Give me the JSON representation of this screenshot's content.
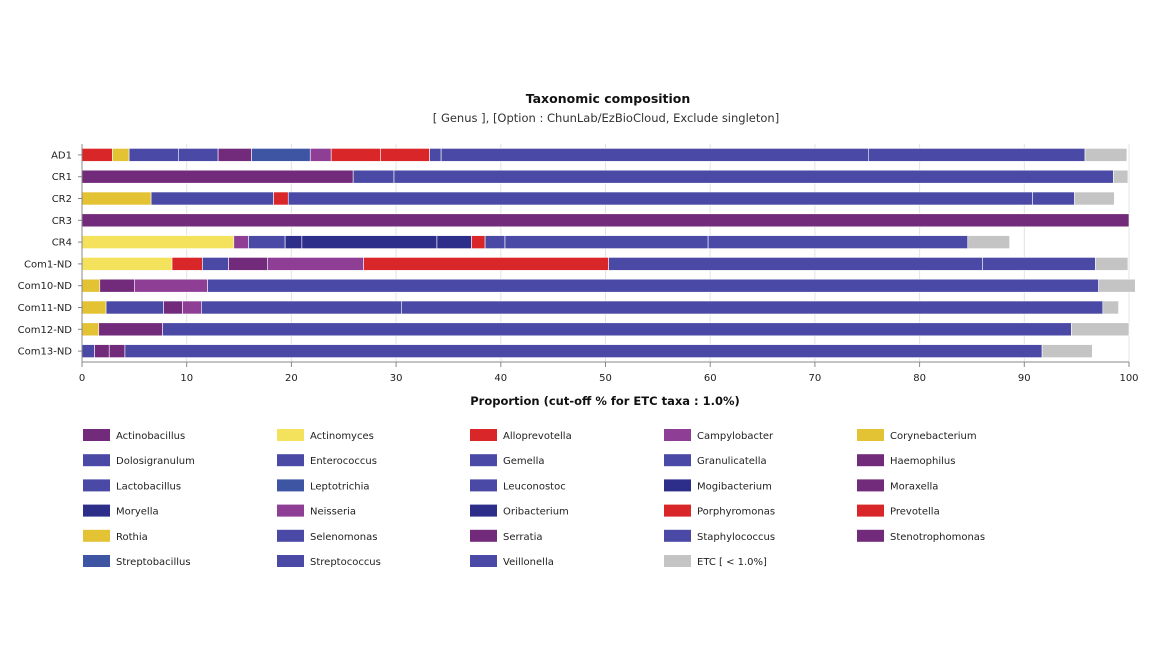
{
  "chart_data": {
    "type": "bar",
    "orientation": "horizontal",
    "stacked": true,
    "title": "Taxonomic composition",
    "subtitle": "[ Genus ], [Option : ChunLab/EzBioCloud, Exclude singleton]",
    "xlabel": "Proportion (cut-off % for ETC taxa : 1.0%)",
    "ylabel": "",
    "xlim": [
      0,
      100
    ],
    "xticks": [
      0,
      10,
      20,
      30,
      40,
      50,
      60,
      70,
      80,
      90,
      100
    ],
    "grid": true,
    "legend_position": "bottom",
    "categories": [
      "AD1",
      "CR1",
      "CR2",
      "CR3",
      "CR4",
      "Com1-ND",
      "Com10-ND",
      "Com11-ND",
      "Com12-ND",
      "Com13-ND"
    ],
    "series": [
      {
        "name": "Actinobacillus",
        "color": "#722a7b",
        "values": [
          0,
          0,
          0,
          0,
          0,
          0,
          0,
          0,
          0,
          0
        ]
      },
      {
        "name": "Actinomyces",
        "color": "#f5e25c",
        "values": [
          0,
          0,
          0,
          0,
          14.5,
          8.6,
          0,
          0,
          0,
          0
        ]
      },
      {
        "name": "Alloprevotella",
        "color": "#d92628",
        "values": [
          2.9,
          0,
          0,
          0,
          0,
          2.9,
          0,
          0,
          0,
          0
        ]
      },
      {
        "name": "Campylobacter",
        "color": "#8e3e95",
        "values": [
          0,
          0,
          0,
          0,
          1.4,
          0,
          0,
          0,
          0,
          0
        ]
      },
      {
        "name": "Corynebacterium",
        "color": "#e3c234",
        "values": [
          1.6,
          0,
          6.6,
          0,
          0,
          0,
          1.7,
          2.3,
          1.6,
          0
        ]
      },
      {
        "name": "Dolosigranulum",
        "color": "#4a4aa6",
        "values": [
          0,
          0,
          0,
          0,
          0,
          0,
          0,
          0,
          0,
          0
        ]
      },
      {
        "name": "Enterococcus",
        "color": "#4a4aa6",
        "values": [
          0,
          0,
          0,
          0,
          0,
          0,
          0,
          0,
          0,
          0
        ]
      },
      {
        "name": "Gemella",
        "color": "#4a4aa6",
        "values": [
          4.7,
          0,
          0,
          0,
          3.5,
          2.5,
          0,
          5.5,
          0,
          1.2
        ]
      },
      {
        "name": "Granulicatella",
        "color": "#4a4aa6",
        "values": [
          3.8,
          0,
          11.7,
          0,
          0,
          0,
          0,
          0,
          0,
          0
        ]
      },
      {
        "name": "Haemophilus",
        "color": "#722a7b",
        "values": [
          3.2,
          25.9,
          0,
          100,
          0,
          3.7,
          3.3,
          1.8,
          6.1,
          1.4
        ]
      },
      {
        "name": "Lactobacillus",
        "color": "#4a4aa6",
        "values": [
          0,
          0,
          0,
          0,
          0,
          0,
          0,
          0,
          0,
          0
        ]
      },
      {
        "name": "Leptotrichia",
        "color": "#3d55a3",
        "values": [
          5.6,
          0,
          0,
          0,
          0,
          0,
          0,
          0,
          0,
          0
        ]
      },
      {
        "name": "Leuconostoc",
        "color": "#4a4aa6",
        "values": [
          0,
          0,
          0,
          0,
          0,
          0,
          0,
          0,
          0,
          0
        ]
      },
      {
        "name": "Mogibacterium",
        "color": "#2d2d8a",
        "values": [
          0,
          0,
          0,
          0,
          1.6,
          0,
          0,
          0,
          0,
          0
        ]
      },
      {
        "name": "Moraxella",
        "color": "#722a7b",
        "values": [
          0,
          0,
          0,
          0,
          0,
          0,
          0,
          0,
          0,
          1.5
        ]
      },
      {
        "name": "Moryella",
        "color": "#2d2d8a",
        "values": [
          0,
          0,
          0,
          0,
          12.9,
          0,
          0,
          0,
          0,
          0
        ]
      },
      {
        "name": "Neisseria",
        "color": "#8e3e95",
        "values": [
          2.0,
          0,
          0,
          0,
          0,
          9.2,
          7.0,
          1.8,
          0,
          0
        ]
      },
      {
        "name": "Oribacterium",
        "color": "#2d2d8a",
        "values": [
          0,
          0,
          0,
          0,
          3.3,
          0,
          0,
          0,
          0,
          0
        ]
      },
      {
        "name": "Porphyromonas",
        "color": "#d92628",
        "values": [
          4.7,
          0,
          1.4,
          0,
          0,
          0,
          0,
          0,
          0,
          0
        ]
      },
      {
        "name": "Prevotella",
        "color": "#d92628",
        "values": [
          4.7,
          0,
          0,
          0,
          1.3,
          23.4,
          0,
          0,
          0,
          0
        ]
      },
      {
        "name": "Rothia",
        "color": "#e3c234",
        "values": [
          0,
          0,
          0,
          0,
          0,
          0,
          0,
          0,
          0,
          0
        ]
      },
      {
        "name": "Selenomonas",
        "color": "#4a4aa6",
        "values": [
          0,
          0,
          0,
          0,
          1.9,
          0,
          0,
          19.1,
          0,
          0
        ]
      },
      {
        "name": "Serratia",
        "color": "#722a7b",
        "values": [
          0,
          0,
          0,
          0,
          0,
          0,
          0,
          0,
          0,
          0
        ]
      },
      {
        "name": "Staphylococcus",
        "color": "#4a4aa6",
        "values": [
          1.1,
          3.9,
          0,
          0,
          0,
          0,
          0,
          0,
          0,
          0
        ]
      },
      {
        "name": "Stenotrophomonas",
        "color": "#722a7b",
        "values": [
          0,
          0,
          0,
          0,
          0,
          0,
          0,
          0,
          0,
          0
        ]
      },
      {
        "name": "Streptobacillus",
        "color": "#3d55a3",
        "values": [
          0,
          0,
          0,
          0,
          0,
          0,
          0,
          0,
          0,
          0
        ]
      },
      {
        "name": "Streptococcus",
        "color": "#4a4aa6",
        "values": [
          40.8,
          68.7,
          71.1,
          0,
          19.4,
          35.7,
          85.1,
          67.0,
          86.8,
          87.6
        ]
      },
      {
        "name": "Veillonella",
        "color": "#4a4aa6",
        "values": [
          20.7,
          0,
          4.0,
          0,
          24.8,
          10.8,
          0,
          0,
          0,
          0
        ]
      },
      {
        "name": "ETC [ < 1.0%]",
        "color": "#c4c4c4",
        "values": [
          4.0,
          1.4,
          3.8,
          0,
          4.0,
          3.1,
          3.5,
          1.5,
          5.5,
          4.8
        ]
      }
    ]
  }
}
